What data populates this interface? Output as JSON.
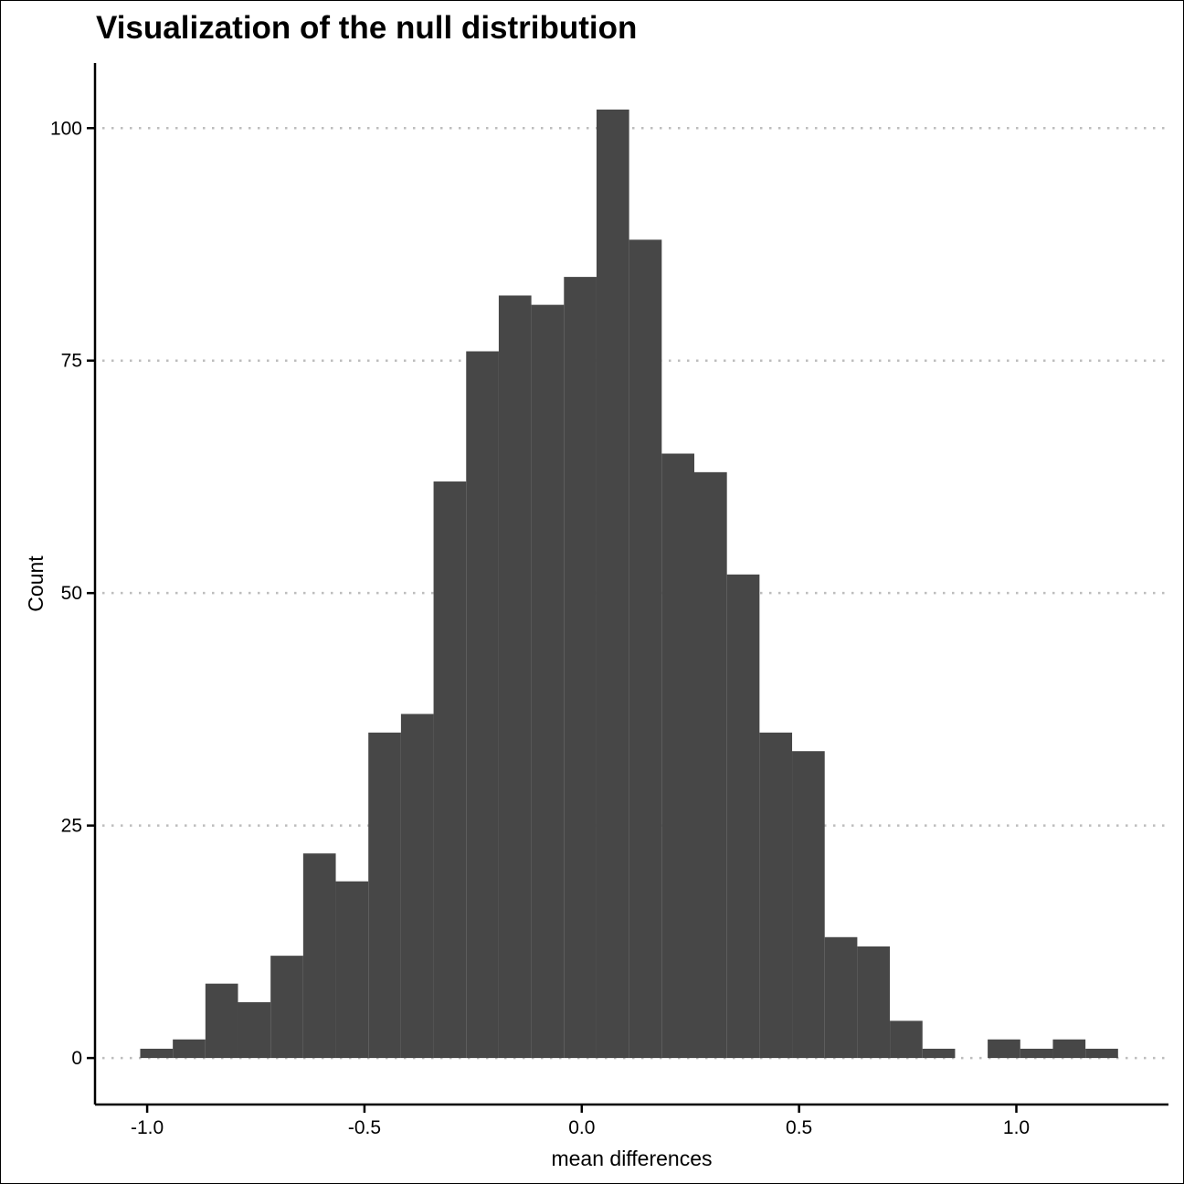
{
  "chart_data": {
    "type": "bar",
    "title": "Visualization of the null distribution",
    "xlabel": "mean differences",
    "ylabel": "Count",
    "xlim": [
      -1.12,
      1.35
    ],
    "ylim": [
      -5,
      107
    ],
    "x_ticks": [
      -1.0,
      -0.5,
      0.0,
      0.5,
      1.0
    ],
    "x_tick_labels": [
      "-1.0",
      "-0.5",
      "0.0",
      "0.5",
      "1.0"
    ],
    "y_ticks": [
      0,
      25,
      50,
      75,
      100
    ],
    "y_tick_labels": [
      "0",
      "25",
      "50",
      "75",
      "100"
    ],
    "grid": "horizontal-dotted",
    "bin_width": 0.075,
    "bins": [
      {
        "x0": -1.016,
        "x1": -0.941,
        "count": 1
      },
      {
        "x0": -0.941,
        "x1": -0.866,
        "count": 2
      },
      {
        "x0": -0.866,
        "x1": -0.791,
        "count": 8
      },
      {
        "x0": -0.791,
        "x1": -0.716,
        "count": 6
      },
      {
        "x0": -0.716,
        "x1": -0.641,
        "count": 11
      },
      {
        "x0": -0.641,
        "x1": -0.566,
        "count": 22
      },
      {
        "x0": -0.566,
        "x1": -0.491,
        "count": 19
      },
      {
        "x0": -0.491,
        "x1": -0.416,
        "count": 35
      },
      {
        "x0": -0.416,
        "x1": -0.341,
        "count": 37
      },
      {
        "x0": -0.341,
        "x1": -0.266,
        "count": 62
      },
      {
        "x0": -0.266,
        "x1": -0.191,
        "count": 76
      },
      {
        "x0": -0.191,
        "x1": -0.116,
        "count": 82
      },
      {
        "x0": -0.116,
        "x1": -0.041,
        "count": 81
      },
      {
        "x0": -0.041,
        "x1": 0.034,
        "count": 84
      },
      {
        "x0": 0.034,
        "x1": 0.109,
        "count": 102
      },
      {
        "x0": 0.109,
        "x1": 0.184,
        "count": 88
      },
      {
        "x0": 0.184,
        "x1": 0.259,
        "count": 65
      },
      {
        "x0": 0.259,
        "x1": 0.334,
        "count": 63
      },
      {
        "x0": 0.334,
        "x1": 0.409,
        "count": 52
      },
      {
        "x0": 0.409,
        "x1": 0.484,
        "count": 35
      },
      {
        "x0": 0.484,
        "x1": 0.559,
        "count": 33
      },
      {
        "x0": 0.559,
        "x1": 0.634,
        "count": 13
      },
      {
        "x0": 0.634,
        "x1": 0.709,
        "count": 12
      },
      {
        "x0": 0.709,
        "x1": 0.784,
        "count": 4
      },
      {
        "x0": 0.784,
        "x1": 0.859,
        "count": 1
      },
      {
        "x0": 0.859,
        "x1": 0.934,
        "count": 0
      },
      {
        "x0": 0.934,
        "x1": 1.009,
        "count": 2
      },
      {
        "x0": 1.009,
        "x1": 1.084,
        "count": 1
      },
      {
        "x0": 1.084,
        "x1": 1.159,
        "count": 2
      },
      {
        "x0": 1.159,
        "x1": 1.234,
        "count": 1
      }
    ],
    "colors": {
      "bar_fill": "#474747",
      "grid": "#bdbdbd",
      "axis": "#000000"
    }
  }
}
